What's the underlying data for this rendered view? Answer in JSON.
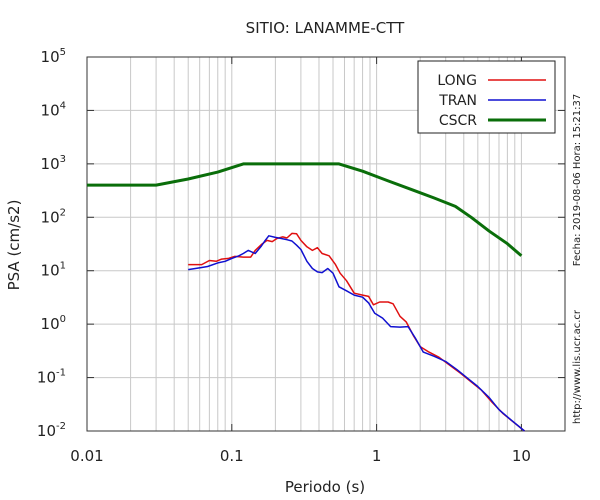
{
  "chart_data": {
    "type": "line",
    "title": "SITIO: LANAMME-CTT",
    "xlabel": "Periodo (s)",
    "ylabel": "PSA (cm/s2)",
    "x_scale": "log",
    "y_scale": "log",
    "xlim": [
      0.01,
      20
    ],
    "ylim": [
      0.01,
      100000
    ],
    "grid": true,
    "legend_position": "top-right",
    "x_ticks": [
      {
        "value": 0.01,
        "label": "0.01"
      },
      {
        "value": 0.1,
        "label": "0.1"
      },
      {
        "value": 1,
        "label": "1"
      },
      {
        "value": 10,
        "label": "10"
      }
    ],
    "y_ticks": [
      {
        "value": 0.01,
        "base": "10",
        "exp": "-2"
      },
      {
        "value": 0.1,
        "base": "10",
        "exp": "-1"
      },
      {
        "value": 1,
        "base": "10",
        "exp": "0"
      },
      {
        "value": 10,
        "base": "10",
        "exp": "1"
      },
      {
        "value": 100,
        "base": "10",
        "exp": "2"
      },
      {
        "value": 1000,
        "base": "10",
        "exp": "3"
      },
      {
        "value": 10000,
        "base": "10",
        "exp": "4"
      },
      {
        "value": 100000,
        "base": "10",
        "exp": "5"
      }
    ],
    "series": [
      {
        "name": "LONG",
        "color": "#e01010",
        "points": [
          [
            0.05,
            13
          ],
          [
            0.062,
            13
          ],
          [
            0.07,
            15.5
          ],
          [
            0.078,
            15
          ],
          [
            0.085,
            16.5
          ],
          [
            0.095,
            17
          ],
          [
            0.105,
            18.5
          ],
          [
            0.12,
            18
          ],
          [
            0.135,
            18
          ],
          [
            0.145,
            24
          ],
          [
            0.16,
            31
          ],
          [
            0.175,
            37
          ],
          [
            0.19,
            35
          ],
          [
            0.205,
            40
          ],
          [
            0.225,
            43
          ],
          [
            0.24,
            41
          ],
          [
            0.26,
            50
          ],
          [
            0.28,
            49
          ],
          [
            0.3,
            37
          ],
          [
            0.33,
            28
          ],
          [
            0.36,
            24
          ],
          [
            0.39,
            27
          ],
          [
            0.42,
            21
          ],
          [
            0.47,
            19
          ],
          [
            0.52,
            13
          ],
          [
            0.56,
            9
          ],
          [
            0.62,
            6.5
          ],
          [
            0.7,
            3.8
          ],
          [
            0.8,
            3.5
          ],
          [
            0.88,
            3.3
          ],
          [
            0.95,
            2.3
          ],
          [
            1.05,
            2.6
          ],
          [
            1.2,
            2.6
          ],
          [
            1.3,
            2.4
          ],
          [
            1.45,
            1.4
          ],
          [
            1.6,
            1.1
          ],
          [
            1.8,
            0.6
          ],
          [
            2.0,
            0.38
          ],
          [
            2.3,
            0.3
          ],
          [
            2.7,
            0.24
          ],
          [
            3.2,
            0.17
          ],
          [
            3.8,
            0.12
          ],
          [
            4.5,
            0.083
          ],
          [
            5.3,
            0.058
          ],
          [
            6.3,
            0.034
          ],
          [
            7.5,
            0.021
          ],
          [
            9.0,
            0.014
          ],
          [
            10.5,
            0.01
          ]
        ]
      },
      {
        "name": "TRAN",
        "color": "#1010d0",
        "points": [
          [
            0.05,
            10.5
          ],
          [
            0.062,
            11.5
          ],
          [
            0.068,
            12
          ],
          [
            0.08,
            14
          ],
          [
            0.09,
            15
          ],
          [
            0.1,
            17
          ],
          [
            0.112,
            19
          ],
          [
            0.12,
            21
          ],
          [
            0.13,
            24
          ],
          [
            0.145,
            21
          ],
          [
            0.16,
            29
          ],
          [
            0.17,
            37
          ],
          [
            0.18,
            45
          ],
          [
            0.2,
            42
          ],
          [
            0.22,
            40
          ],
          [
            0.24,
            38
          ],
          [
            0.26,
            36
          ],
          [
            0.28,
            30
          ],
          [
            0.3,
            25
          ],
          [
            0.33,
            15
          ],
          [
            0.36,
            11
          ],
          [
            0.39,
            9.5
          ],
          [
            0.42,
            9.2
          ],
          [
            0.46,
            11
          ],
          [
            0.5,
            9
          ],
          [
            0.55,
            5
          ],
          [
            0.62,
            4.2
          ],
          [
            0.7,
            3.5
          ],
          [
            0.8,
            3.2
          ],
          [
            0.88,
            2.5
          ],
          [
            0.97,
            1.6
          ],
          [
            1.1,
            1.3
          ],
          [
            1.25,
            0.9
          ],
          [
            1.45,
            0.88
          ],
          [
            1.65,
            0.9
          ],
          [
            1.85,
            0.55
          ],
          [
            2.1,
            0.3
          ],
          [
            2.5,
            0.25
          ],
          [
            3.0,
            0.2
          ],
          [
            3.6,
            0.14
          ],
          [
            4.3,
            0.095
          ],
          [
            5.0,
            0.068
          ],
          [
            6.0,
            0.042
          ],
          [
            7.0,
            0.025
          ],
          [
            8.5,
            0.016
          ],
          [
            10.5,
            0.01
          ]
        ]
      },
      {
        "name": "CSCR",
        "color": "#0a6e0a",
        "points": [
          [
            0.01,
            400
          ],
          [
            0.03,
            400
          ],
          [
            0.05,
            520
          ],
          [
            0.08,
            700
          ],
          [
            0.12,
            1000
          ],
          [
            0.55,
            1000
          ],
          [
            0.8,
            730
          ],
          [
            1.2,
            480
          ],
          [
            1.8,
            320
          ],
          [
            2.5,
            230
          ],
          [
            3.5,
            160
          ],
          [
            4.5,
            100
          ],
          [
            6.0,
            55
          ],
          [
            8.0,
            32
          ],
          [
            10.0,
            19
          ]
        ]
      }
    ]
  },
  "side_notes": {
    "date_time": "Fecha: 2019-08-06 Hora: 15:21:37",
    "url": "http://www.lis.ucr.ac.cr"
  }
}
